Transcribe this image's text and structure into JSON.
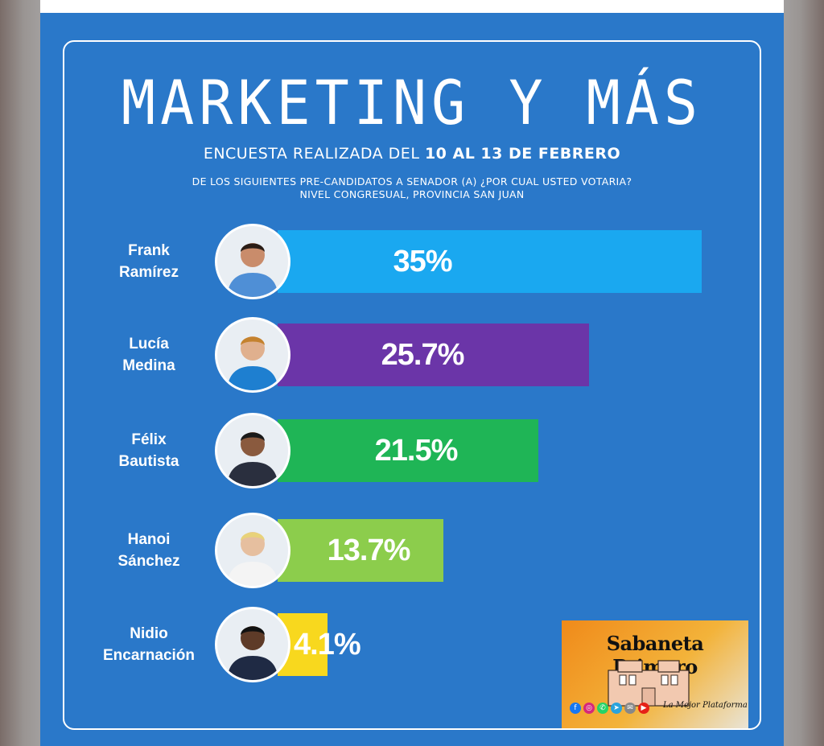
{
  "header": {
    "brand": "MARKETING Y MÁS",
    "survey_prefix": "ENCUESTA REALIZADA DEL ",
    "survey_dates": "10 AL 13 DE FEBRERO",
    "question_line1": "DE LOS SIGUIENTES PRE-CANDIDATOS A SENADOR (A) ¿POR CUAL USTED VOTARIA?",
    "question_line2": "NIVEL CONGRESUAL, PROVINCIA SAN JUAN"
  },
  "chart_data": {
    "type": "bar",
    "orientation": "horizontal",
    "categories": [
      [
        "Frank",
        "Ramírez"
      ],
      [
        "Lucía",
        "Medina"
      ],
      [
        "Félix",
        "Bautista"
      ],
      [
        "Hanoi",
        "Sánchez"
      ],
      [
        "Nidio",
        "Encarnación"
      ]
    ],
    "values": [
      35,
      25.7,
      21.5,
      13.7,
      4.1
    ],
    "value_labels": [
      "35%",
      "25.7%",
      "21.5%",
      "13.7%",
      "4.1%"
    ],
    "colors": [
      "#1aa8f0",
      "#6b35a8",
      "#1fb556",
      "#8ccd4c",
      "#f8d81e"
    ],
    "xlim": [
      0,
      35
    ],
    "grid": false,
    "legend": "none"
  },
  "watermark": {
    "title": "Sabaneta Primero",
    "tagline": "La Mejor Plataforma",
    "icons": [
      "facebook-icon",
      "instagram-icon",
      "whatsapp-icon",
      "telegram-icon",
      "email-icon",
      "youtube-icon"
    ]
  },
  "theme": {
    "background": "#2a78c9",
    "text": "#ffffff"
  }
}
